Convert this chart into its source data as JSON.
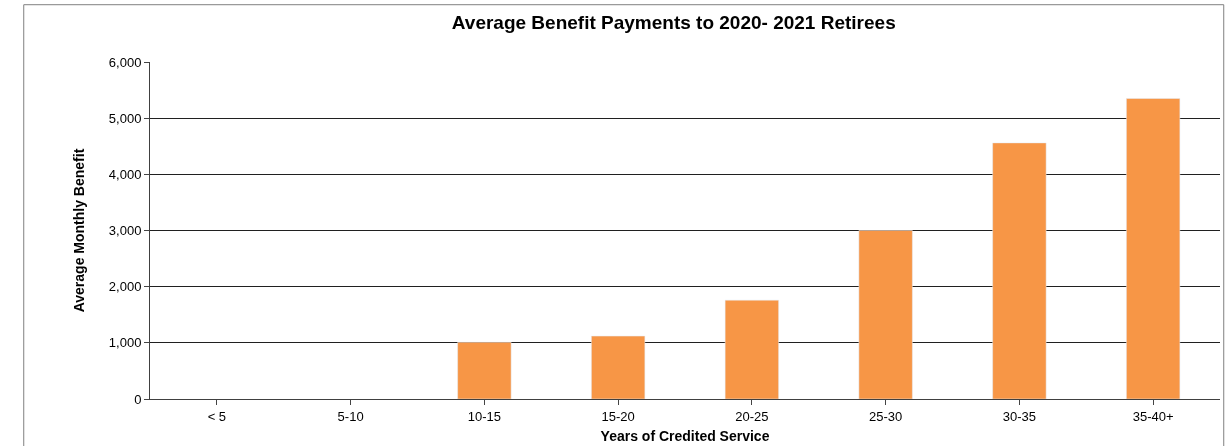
{
  "chart_data": {
    "type": "bar",
    "title": "Average Benefit Payments to 2020- 2021 Retirees",
    "xlabel": "Years of Credited Service",
    "ylabel": "Average Monthly Benefit",
    "categories": [
      "< 5",
      "5-10",
      "10-15",
      "15-20",
      "20-25",
      "25-30",
      "30-35",
      "35-40+"
    ],
    "values": [
      null,
      null,
      1010,
      1120,
      1760,
      3000,
      4560,
      5350
    ],
    "color": "#f79646",
    "ylim": [
      0,
      6000
    ],
    "yticks": [
      {
        "value": 0,
        "label": "0"
      },
      {
        "value": 1000,
        "label": "1,000"
      },
      {
        "value": 2000,
        "label": "2,000"
      },
      {
        "value": 3000,
        "label": "3,000"
      },
      {
        "value": 4000,
        "label": "4,000"
      },
      {
        "value": 5000,
        "label": "5,000"
      },
      {
        "value": 6000,
        "label": "6,000"
      }
    ],
    "grid": "y"
  }
}
